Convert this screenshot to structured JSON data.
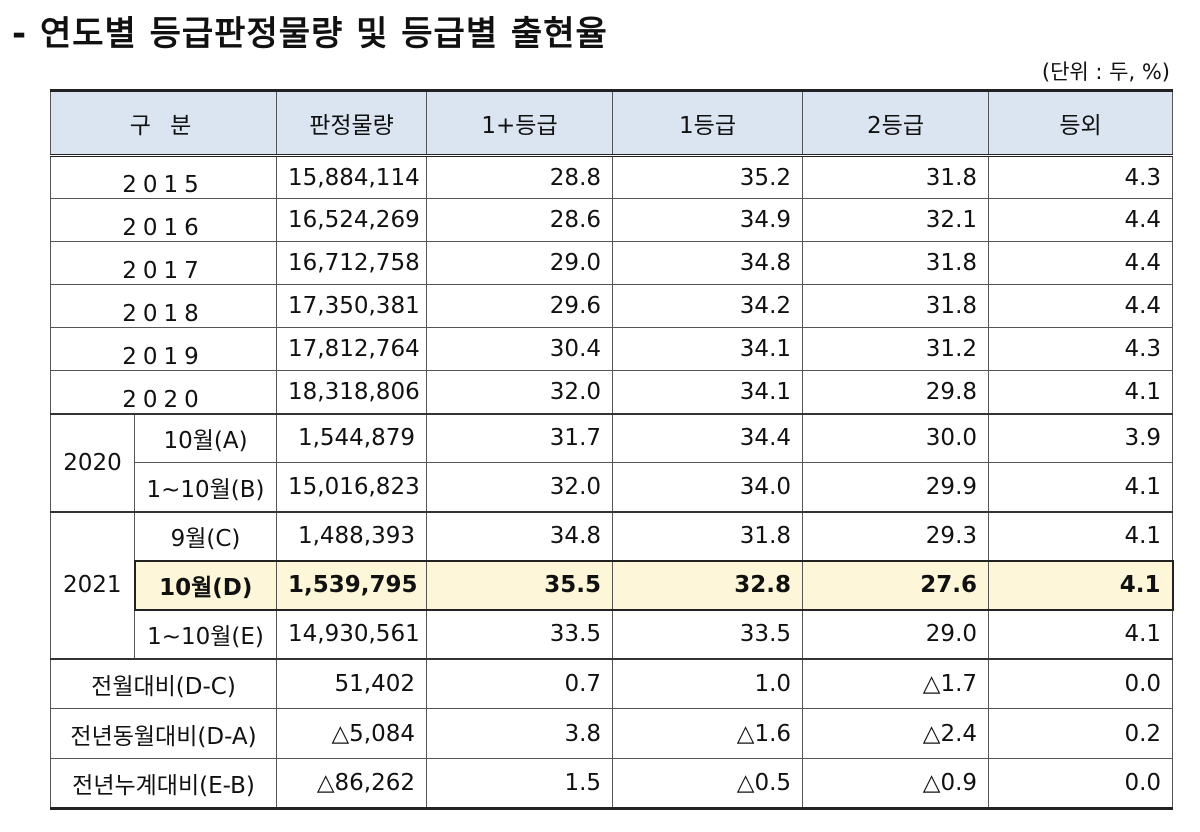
{
  "title": "- 연도별 등급판정물량 및 등급별 출현율",
  "unit": "(단위 : 두, %)",
  "table": {
    "headers": [
      "구  분",
      "판정물량",
      "1+등급",
      "1등급",
      "2등급",
      "등외"
    ],
    "yearly": [
      {
        "year": "2015",
        "amount": "15,884,114",
        "g1p": "28.8",
        "g1": "35.2",
        "g2": "31.8",
        "out": "4.3"
      },
      {
        "year": "2016",
        "amount": "16,524,269",
        "g1p": "28.6",
        "g1": "34.9",
        "g2": "32.1",
        "out": "4.4"
      },
      {
        "year": "2017",
        "amount": "16,712,758",
        "g1p": "29.0",
        "g1": "34.8",
        "g2": "31.8",
        "out": "4.4"
      },
      {
        "year": "2018",
        "amount": "17,350,381",
        "g1p": "29.6",
        "g1": "34.2",
        "g2": "31.8",
        "out": "4.4"
      },
      {
        "year": "2019",
        "amount": "17,812,764",
        "g1p": "30.4",
        "g1": "34.1",
        "g2": "31.2",
        "out": "4.3"
      },
      {
        "year": "2020",
        "amount": "18,318,806",
        "g1p": "32.0",
        "g1": "34.1",
        "g2": "29.8",
        "out": "4.1"
      }
    ],
    "group2020": {
      "label": "2020",
      "rows": [
        {
          "period": "10월(A)",
          "amount": "1,544,879",
          "g1p": "31.7",
          "g1": "34.4",
          "g2": "30.0",
          "out": "3.9"
        },
        {
          "period": "1~10월(B)",
          "amount": "15,016,823",
          "g1p": "32.0",
          "g1": "34.0",
          "g2": "29.9",
          "out": "4.1"
        }
      ]
    },
    "group2021": {
      "label": "2021",
      "rows": [
        {
          "period": "9월(C)",
          "amount": "1,488,393",
          "g1p": "34.8",
          "g1": "31.8",
          "g2": "29.3",
          "out": "4.1"
        },
        {
          "period": "10월(D)",
          "amount": "1,539,795",
          "g1p": "35.5",
          "g1": "32.8",
          "g2": "27.6",
          "out": "4.1"
        },
        {
          "period": "1~10월(E)",
          "amount": "14,930,561",
          "g1p": "33.5",
          "g1": "33.5",
          "g2": "29.0",
          "out": "4.1"
        }
      ]
    },
    "comparisons": [
      {
        "label": "전월대비(D-C)",
        "amount": "51,402",
        "g1p": "0.7",
        "g1": "1.0",
        "g2": "△1.7",
        "out": "0.0"
      },
      {
        "label": "전년동월대비(D-A)",
        "amount": "△5,084",
        "g1p": "3.8",
        "g1": "△1.6",
        "g2": "△2.4",
        "out": "0.2"
      },
      {
        "label": "전년누계대비(E-B)",
        "amount": "△86,262",
        "g1p": "1.5",
        "g1": "△0.5",
        "g2": "△0.9",
        "out": "0.0"
      }
    ]
  }
}
